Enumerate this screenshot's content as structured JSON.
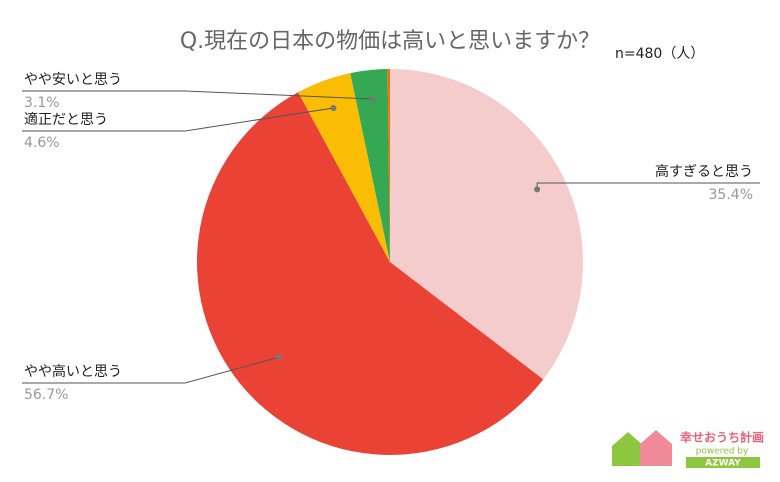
{
  "chart_data": {
    "type": "pie",
    "title": "Q.現在の日本の物価は高いと思いますか？",
    "annotation": "n=480（人）",
    "categories": [
      "高すぎると思う",
      "やや高いと思う",
      "適正だと思う",
      "やや安いと思う",
      null
    ],
    "values": [
      35.4,
      56.7,
      4.6,
      3.1,
      0.2
    ],
    "value_labels": [
      "35.4%",
      "56.7%",
      "4.6%",
      "3.1%",
      null
    ],
    "colors": [
      "#f4cccc",
      "#ea4335",
      "#fbbc04",
      "#34a853",
      "#ff6d01"
    ]
  },
  "logo": {
    "name": "幸せおうち計画",
    "tagline": "powered by",
    "brand": "AZWAY"
  }
}
